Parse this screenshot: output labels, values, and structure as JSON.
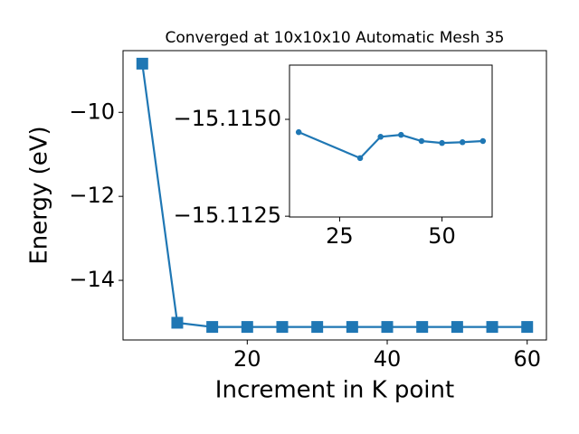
{
  "chart_data": [
    {
      "type": "line",
      "title": "Converged at 10x10x10 Automatic Mesh 35",
      "x_label": "Increment in K point",
      "y_label": "Energy (eV)",
      "x": [
        5,
        10,
        15,
        20,
        25,
        30,
        35,
        40,
        45,
        50,
        55,
        60
      ],
      "series": [
        {
          "color": "#1f77b4",
          "marker": "square",
          "values": [
            -8.84,
            -15.01,
            -15.11,
            -15.11,
            -15.11,
            -15.11,
            -15.11,
            -15.11,
            -15.11,
            -15.11,
            -15.11,
            -15.11
          ]
        }
      ],
      "xlim": [
        2.25,
        62.75
      ],
      "ylim": [
        -15.42,
        -8.53
      ],
      "xticks": [
        20,
        40,
        60
      ],
      "yticks": [
        {
          "value": -14,
          "label": "−14"
        },
        {
          "value": -12,
          "label": "−12"
        },
        {
          "value": -10,
          "label": "−10"
        }
      ]
    },
    {
      "type": "line",
      "x": [
        15,
        30,
        35,
        40,
        45,
        50,
        55,
        60
      ],
      "series": [
        {
          "color": "#1f77b4",
          "marker": "circle",
          "values": [
            -15.11467,
            -15.114,
            -15.11455,
            -15.1146,
            -15.11444,
            -15.11439,
            -15.11441,
            -15.11444
          ]
        }
      ],
      "xlim": [
        12.75,
        62.25
      ],
      "ylim": [
        -15.11248,
        -15.1164
      ],
      "xticks": [
        25,
        50
      ],
      "yticks": [
        {
          "value": -15.115,
          "label": "−15.1150"
        },
        {
          "value": -15.1125,
          "label": "−15.1125"
        }
      ]
    }
  ]
}
